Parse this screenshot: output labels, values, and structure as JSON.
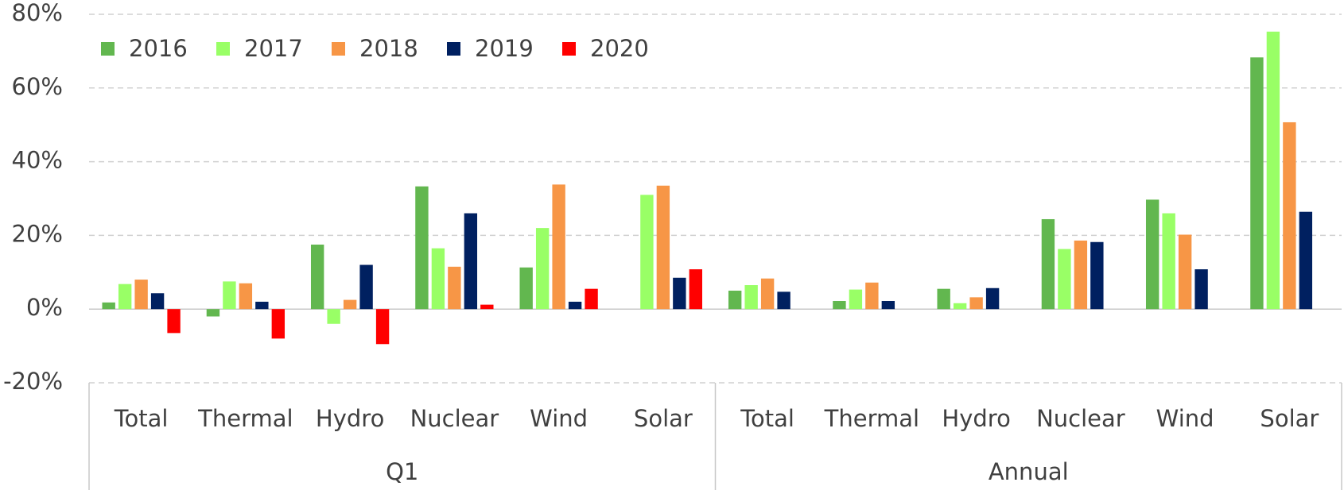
{
  "chart_data": {
    "type": "bar",
    "groups": [
      "Q1",
      "Annual"
    ],
    "categories": [
      "Total",
      "Thermal",
      "Hydro",
      "Nuclear",
      "Wind",
      "Solar",
      "Total",
      "Thermal",
      "Hydro",
      "Nuclear",
      "Wind",
      "Solar"
    ],
    "series": [
      {
        "name": "2016",
        "color": "#62b74f",
        "values": [
          1.8,
          -2,
          17.5,
          33.3,
          11.3,
          null,
          5,
          2.2,
          5.5,
          24.4,
          29.7,
          68.3
        ]
      },
      {
        "name": "2017",
        "color": "#99ff66",
        "values": [
          6.8,
          7.5,
          -4,
          16.5,
          22,
          31,
          6.5,
          5.3,
          1.6,
          16.3,
          26,
          75.3
        ]
      },
      {
        "name": "2018",
        "color": "#f79646",
        "values": [
          8,
          7,
          2.5,
          11.5,
          33.8,
          33.5,
          8.3,
          7.2,
          3.2,
          18.6,
          20.2,
          50.7
        ]
      },
      {
        "name": "2019",
        "color": "#002060",
        "values": [
          4.3,
          2,
          12,
          26,
          2,
          8.5,
          4.7,
          2.2,
          5.7,
          18.2,
          10.8,
          26.4
        ]
      },
      {
        "name": "2020",
        "color": "#ff0000",
        "values": [
          -6.5,
          -8,
          -9.5,
          1.2,
          5.5,
          10.8,
          null,
          null,
          null,
          null,
          null,
          null
        ]
      }
    ],
    "ylim": [
      -20,
      80
    ],
    "yticks": [
      {
        "value": -20,
        "label": "-20%"
      },
      {
        "value": 0,
        "label": "0%"
      },
      {
        "value": 20,
        "label": "20%"
      },
      {
        "value": 40,
        "label": "40%"
      },
      {
        "value": 60,
        "label": "60%"
      },
      {
        "value": 80,
        "label": "80%"
      }
    ],
    "grid": true,
    "legend": "top-left"
  }
}
